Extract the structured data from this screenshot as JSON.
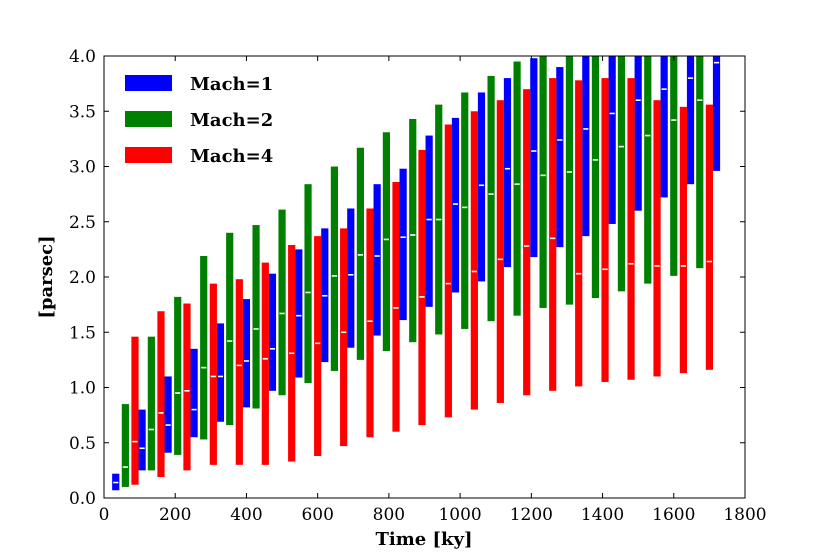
{
  "chart_data": {
    "type": "bar",
    "subtype": "floating-range",
    "title": "",
    "xlabel": "Time [ky]",
    "ylabel": "[parsec]",
    "xlim": [
      0,
      1800
    ],
    "ylim": [
      0,
      4.0
    ],
    "xticks": [
      0,
      200,
      400,
      600,
      800,
      1000,
      1200,
      1400,
      1600,
      1800
    ],
    "yticks": [
      0.0,
      0.5,
      1.0,
      1.5,
      2.0,
      2.5,
      3.0,
      3.5,
      4.0
    ],
    "ytick_labels": [
      "0.0",
      "0.5",
      "1.0",
      "1.5",
      "2.0",
      "2.5",
      "3.0",
      "3.5",
      "4.0"
    ],
    "grid": false,
    "legend_position": "top-left",
    "series": [
      {
        "name": "Mach=1",
        "color": "#0000ff",
        "bars": [
          {
            "x": 33,
            "low": 0.07,
            "mid": 0.14,
            "high": 0.22
          },
          {
            "x": 107,
            "low": 0.25,
            "mid": 0.45,
            "high": 0.8
          },
          {
            "x": 180,
            "low": 0.41,
            "mid": 0.66,
            "high": 1.1
          },
          {
            "x": 253,
            "low": 0.55,
            "mid": 0.8,
            "high": 1.35
          },
          {
            "x": 327,
            "low": 0.69,
            "mid": 1.1,
            "high": 1.58
          },
          {
            "x": 400,
            "low": 0.82,
            "mid": 1.24,
            "high": 1.8
          },
          {
            "x": 473,
            "low": 0.97,
            "mid": 1.35,
            "high": 2.03
          },
          {
            "x": 547,
            "low": 1.09,
            "mid": 1.65,
            "high": 2.25
          },
          {
            "x": 620,
            "low": 1.23,
            "mid": 1.83,
            "high": 2.44
          },
          {
            "x": 693,
            "low": 1.36,
            "mid": 2.02,
            "high": 2.62
          },
          {
            "x": 767,
            "low": 1.47,
            "mid": 2.19,
            "high": 2.84
          },
          {
            "x": 840,
            "low": 1.61,
            "mid": 2.36,
            "high": 2.98
          },
          {
            "x": 913,
            "low": 1.73,
            "mid": 2.52,
            "high": 3.28
          },
          {
            "x": 987,
            "low": 1.86,
            "mid": 2.66,
            "high": 3.44
          },
          {
            "x": 1060,
            "low": 1.96,
            "mid": 2.83,
            "high": 3.67
          },
          {
            "x": 1133,
            "low": 2.09,
            "mid": 2.98,
            "high": 3.8
          },
          {
            "x": 1207,
            "low": 2.18,
            "mid": 3.14,
            "high": 3.98
          },
          {
            "x": 1280,
            "low": 2.27,
            "mid": 3.24,
            "high": 3.9
          },
          {
            "x": 1353,
            "low": 2.37,
            "mid": 3.34,
            "high": 4.0
          },
          {
            "x": 1427,
            "low": 2.48,
            "mid": 3.48,
            "high": 4.0
          },
          {
            "x": 1500,
            "low": 2.6,
            "mid": 3.6,
            "high": 4.0
          },
          {
            "x": 1573,
            "low": 2.72,
            "mid": 3.7,
            "high": 4.0
          },
          {
            "x": 1647,
            "low": 2.84,
            "mid": 3.8,
            "high": 4.0
          },
          {
            "x": 1720,
            "low": 2.96,
            "mid": 3.94,
            "high": 4.0
          }
        ]
      },
      {
        "name": "Mach=2",
        "color": "#008000",
        "bars": [
          {
            "x": 60,
            "low": 0.1,
            "mid": 0.28,
            "high": 0.85
          },
          {
            "x": 133,
            "low": 0.25,
            "mid": 0.62,
            "high": 1.46
          },
          {
            "x": 207,
            "low": 0.39,
            "mid": 0.95,
            "high": 1.82
          },
          {
            "x": 280,
            "low": 0.53,
            "mid": 1.18,
            "high": 2.19
          },
          {
            "x": 353,
            "low": 0.66,
            "mid": 1.42,
            "high": 2.4
          },
          {
            "x": 427,
            "low": 0.81,
            "mid": 1.53,
            "high": 2.47
          },
          {
            "x": 500,
            "low": 0.93,
            "mid": 1.67,
            "high": 2.61
          },
          {
            "x": 573,
            "low": 1.04,
            "mid": 1.86,
            "high": 2.84
          },
          {
            "x": 647,
            "low": 1.15,
            "mid": 2.01,
            "high": 3.0
          },
          {
            "x": 720,
            "low": 1.25,
            "mid": 2.2,
            "high": 3.17
          },
          {
            "x": 793,
            "low": 1.33,
            "mid": 2.34,
            "high": 3.31
          },
          {
            "x": 867,
            "low": 1.41,
            "mid": 2.38,
            "high": 3.43
          },
          {
            "x": 940,
            "low": 1.48,
            "mid": 2.52,
            "high": 3.56
          },
          {
            "x": 1013,
            "low": 1.53,
            "mid": 2.63,
            "high": 3.67
          },
          {
            "x": 1087,
            "low": 1.6,
            "mid": 2.75,
            "high": 3.82
          },
          {
            "x": 1160,
            "low": 1.65,
            "mid": 2.84,
            "high": 3.95
          },
          {
            "x": 1233,
            "low": 1.72,
            "mid": 2.92,
            "high": 4.0
          },
          {
            "x": 1307,
            "low": 1.75,
            "mid": 2.95,
            "high": 4.0
          },
          {
            "x": 1380,
            "low": 1.81,
            "mid": 3.06,
            "high": 4.0
          },
          {
            "x": 1453,
            "low": 1.87,
            "mid": 3.18,
            "high": 4.0
          },
          {
            "x": 1527,
            "low": 1.94,
            "mid": 3.28,
            "high": 4.0
          },
          {
            "x": 1600,
            "low": 2.01,
            "mid": 3.42,
            "high": 4.0
          },
          {
            "x": 1673,
            "low": 2.08,
            "mid": 3.6,
            "high": 4.0
          }
        ]
      },
      {
        "name": "Mach=4",
        "color": "#ff0000",
        "bars": [
          {
            "x": 87,
            "low": 0.12,
            "mid": 0.51,
            "high": 1.46
          },
          {
            "x": 160,
            "low": 0.19,
            "mid": 0.77,
            "high": 1.69
          },
          {
            "x": 233,
            "low": 0.25,
            "mid": 0.97,
            "high": 1.76
          },
          {
            "x": 307,
            "low": 0.3,
            "mid": 1.1,
            "high": 1.94
          },
          {
            "x": 380,
            "low": 0.3,
            "mid": 1.2,
            "high": 1.98
          },
          {
            "x": 453,
            "low": 0.3,
            "mid": 1.26,
            "high": 2.13
          },
          {
            "x": 527,
            "low": 0.33,
            "mid": 1.31,
            "high": 2.29
          },
          {
            "x": 600,
            "low": 0.38,
            "mid": 1.4,
            "high": 2.37
          },
          {
            "x": 673,
            "low": 0.47,
            "mid": 1.5,
            "high": 2.44
          },
          {
            "x": 747,
            "low": 0.55,
            "mid": 1.6,
            "high": 2.62
          },
          {
            "x": 820,
            "low": 0.6,
            "mid": 1.72,
            "high": 2.86
          },
          {
            "x": 893,
            "low": 0.66,
            "mid": 1.82,
            "high": 3.15
          },
          {
            "x": 967,
            "low": 0.73,
            "mid": 1.94,
            "high": 3.38
          },
          {
            "x": 1040,
            "low": 0.8,
            "mid": 2.05,
            "high": 3.5
          },
          {
            "x": 1113,
            "low": 0.86,
            "mid": 2.16,
            "high": 3.6
          },
          {
            "x": 1187,
            "low": 0.93,
            "mid": 2.28,
            "high": 3.7
          },
          {
            "x": 1260,
            "low": 0.97,
            "mid": 2.35,
            "high": 3.8
          },
          {
            "x": 1333,
            "low": 1.01,
            "mid": 2.03,
            "high": 3.78
          },
          {
            "x": 1407,
            "low": 1.05,
            "mid": 2.07,
            "high": 3.8
          },
          {
            "x": 1480,
            "low": 1.07,
            "mid": 2.12,
            "high": 3.8
          },
          {
            "x": 1553,
            "low": 1.1,
            "mid": 2.1,
            "high": 3.6
          },
          {
            "x": 1627,
            "low": 1.13,
            "mid": 2.1,
            "high": 3.54
          },
          {
            "x": 1700,
            "low": 1.16,
            "mid": 2.14,
            "high": 3.56
          }
        ]
      }
    ]
  }
}
